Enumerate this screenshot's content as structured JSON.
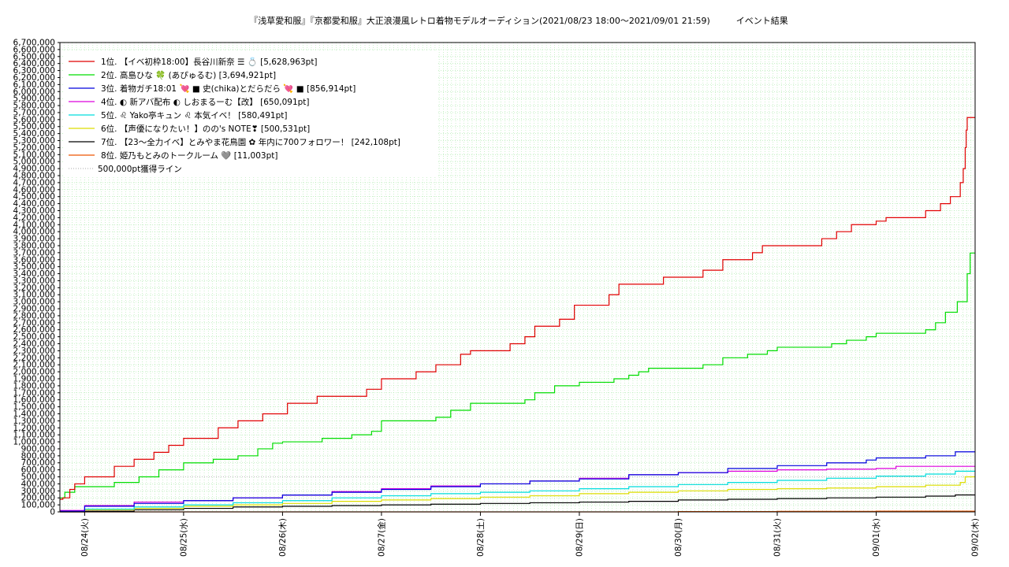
{
  "chart_data": {
    "type": "line",
    "title": "『浅草愛和服』『京都愛和服』大正浪漫風レトロ着物モデルオーディション(2021/08/23 18:00～2021/09/01 21:59)　　　イベント結果",
    "xlabel": "",
    "ylabel": "",
    "ylim": [
      0,
      6700000
    ],
    "y_tick_step": 100000,
    "x_range_days": [
      -0.25,
      9.0
    ],
    "x_ticks": [
      {
        "day": 0,
        "label": "08/24(火)"
      },
      {
        "day": 1,
        "label": "08/25(水)"
      },
      {
        "day": 2,
        "label": "08/26(木)"
      },
      {
        "day": 3,
        "label": "08/27(金)"
      },
      {
        "day": 4,
        "label": "08/28(土)"
      },
      {
        "day": 5,
        "label": "08/29(日)"
      },
      {
        "day": 6,
        "label": "08/30(月)"
      },
      {
        "day": 7,
        "label": "08/31(火)"
      },
      {
        "day": 8,
        "label": "09/01(水)"
      },
      {
        "day": 9,
        "label": "09/02(木)"
      }
    ],
    "grid": true,
    "legend_position": "top-left",
    "reference_line": {
      "value": 500000,
      "label": "500,000pt獲得ライン",
      "color": "#bbbbbb"
    },
    "series": [
      {
        "name": "1位. 【イベ初枠18:00】長谷川新奈 ☰ 💍 [5,628,963pt]",
        "color": "#e00000",
        "x": [
          -0.25,
          -0.22,
          -0.15,
          -0.1,
          0.0,
          0.3,
          0.5,
          0.7,
          0.85,
          1.0,
          1.35,
          1.55,
          1.8,
          2.05,
          2.35,
          2.85,
          3.0,
          3.35,
          3.55,
          3.8,
          3.9,
          4.3,
          4.45,
          4.55,
          4.8,
          4.95,
          5.3,
          5.4,
          5.85,
          6.25,
          6.45,
          6.75,
          6.85,
          7.45,
          7.6,
          7.75,
          8.0,
          8.1,
          8.5,
          8.65,
          8.75,
          8.85,
          8.88,
          8.9,
          8.91,
          8.92,
          9.0
        ],
        "y": [
          180000,
          200000,
          320000,
          400000,
          500000,
          650000,
          750000,
          850000,
          950000,
          1050000,
          1200000,
          1300000,
          1400000,
          1550000,
          1650000,
          1750000,
          1900000,
          2000000,
          2100000,
          2250000,
          2300000,
          2400000,
          2500000,
          2650000,
          2750000,
          2950000,
          3100000,
          3250000,
          3350000,
          3450000,
          3600000,
          3700000,
          3800000,
          3900000,
          4000000,
          4100000,
          4150000,
          4200000,
          4300000,
          4400000,
          4500000,
          4700000,
          4900000,
          5200000,
          5450000,
          5628963,
          5628963
        ]
      },
      {
        "name": "2位. 高島ひな 🍀 (あぴゅるむ) [3,694,921pt]",
        "color": "#00dd00",
        "x": [
          -0.25,
          -0.2,
          -0.1,
          0.3,
          0.55,
          0.75,
          1.0,
          1.3,
          1.55,
          1.75,
          1.9,
          2.0,
          2.4,
          2.7,
          2.9,
          3.0,
          3.55,
          3.7,
          3.9,
          4.45,
          4.55,
          4.75,
          5.0,
          5.35,
          5.5,
          5.6,
          5.7,
          6.25,
          6.45,
          6.7,
          6.9,
          7.0,
          7.55,
          7.7,
          7.9,
          8.0,
          8.5,
          8.6,
          8.7,
          8.82,
          8.92,
          8.95,
          9.0
        ],
        "y": [
          200000,
          280000,
          360000,
          420000,
          500000,
          600000,
          700000,
          750000,
          800000,
          900000,
          980000,
          1000000,
          1050000,
          1100000,
          1150000,
          1300000,
          1350000,
          1450000,
          1550000,
          1600000,
          1700000,
          1800000,
          1850000,
          1900000,
          1950000,
          2000000,
          2050000,
          2100000,
          2200000,
          2250000,
          2300000,
          2350000,
          2400000,
          2450000,
          2500000,
          2550000,
          2600000,
          2700000,
          2850000,
          3000000,
          3400000,
          3694921,
          3694921
        ]
      },
      {
        "name": "3位. 着物ガチ18:01 💘 ■ 史(chika)とだらだら 💘 ■ [856,914pt]",
        "color": "#0000dd",
        "x": [
          -0.25,
          0.0,
          0.5,
          1.0,
          1.5,
          2.0,
          2.5,
          3.0,
          3.5,
          4.0,
          4.5,
          5.0,
          5.5,
          6.0,
          6.5,
          7.0,
          7.5,
          7.9,
          8.0,
          8.5,
          8.8,
          9.0
        ],
        "y": [
          10000,
          80000,
          120000,
          160000,
          200000,
          240000,
          280000,
          320000,
          360000,
          400000,
          440000,
          470000,
          530000,
          560000,
          620000,
          660000,
          700000,
          740000,
          770000,
          800000,
          856914,
          856914
        ]
      },
      {
        "name": "4位. ◐ 新アバ配布 ◐ しおまるーむ【改】 [650,091pt]",
        "color": "#dd00dd",
        "x": [
          -0.25,
          0.0,
          0.5,
          1.0,
          1.5,
          2.0,
          2.5,
          3.0,
          3.5,
          4.0,
          4.5,
          5.0,
          5.5,
          6.0,
          6.5,
          7.0,
          7.5,
          8.0,
          8.2,
          9.0
        ],
        "y": [
          20000,
          90000,
          140000,
          160000,
          200000,
          240000,
          290000,
          330000,
          370000,
          400000,
          440000,
          480000,
          530000,
          560000,
          580000,
          600000,
          610000,
          620000,
          650091,
          650091
        ]
      },
      {
        "name": "5位. ♌ Yako亭キュン ♌ 本気イベ！ [580,491pt]",
        "color": "#00dddd",
        "x": [
          -0.25,
          0.0,
          0.5,
          1.0,
          1.5,
          2.0,
          2.5,
          3.0,
          3.5,
          4.0,
          4.5,
          5.0,
          5.5,
          6.0,
          6.5,
          7.0,
          7.5,
          8.0,
          8.5,
          8.8,
          9.0
        ],
        "y": [
          10000,
          40000,
          70000,
          100000,
          130000,
          160000,
          200000,
          230000,
          260000,
          280000,
          300000,
          330000,
          360000,
          390000,
          420000,
          450000,
          480000,
          510000,
          540000,
          580491,
          580491
        ]
      },
      {
        "name": "6位. 【声優になりたい！】のの's NOTE❣ [500,531pt]",
        "color": "#dddd00",
        "x": [
          -0.25,
          0.0,
          0.5,
          1.0,
          1.5,
          2.0,
          2.5,
          3.0,
          3.5,
          4.0,
          4.5,
          5.0,
          5.5,
          6.0,
          6.5,
          7.0,
          7.5,
          8.0,
          8.5,
          8.85,
          8.9,
          9.0
        ],
        "y": [
          5000,
          30000,
          50000,
          80000,
          100000,
          120000,
          150000,
          170000,
          190000,
          210000,
          230000,
          260000,
          280000,
          300000,
          320000,
          330000,
          340000,
          360000,
          380000,
          420000,
          500531,
          500531
        ]
      },
      {
        "name": "7位. 【23〜全力イベ】とみやま花鳥園 ✿ 年内に700フォロワー！ [242,108pt]",
        "color": "#000000",
        "x": [
          -0.25,
          0.0,
          0.5,
          1.0,
          1.5,
          2.0,
          2.5,
          3.0,
          3.5,
          4.0,
          4.5,
          5.0,
          5.5,
          6.0,
          6.5,
          7.0,
          7.5,
          8.0,
          8.5,
          8.8,
          9.0
        ],
        "y": [
          0,
          10000,
          30000,
          50000,
          70000,
          80000,
          90000,
          100000,
          110000,
          120000,
          130000,
          140000,
          150000,
          170000,
          180000,
          190000,
          200000,
          210000,
          225000,
          242108,
          242108
        ]
      },
      {
        "name": "8位. 姫乃もとみのトークルーム 🩶 [11,003pt]",
        "color": "#ee5500",
        "x": [
          -0.25,
          5.7,
          6.0,
          7.0,
          8.0,
          9.0
        ],
        "y": [
          0,
          0,
          5000,
          8000,
          10000,
          11003
        ]
      }
    ]
  }
}
